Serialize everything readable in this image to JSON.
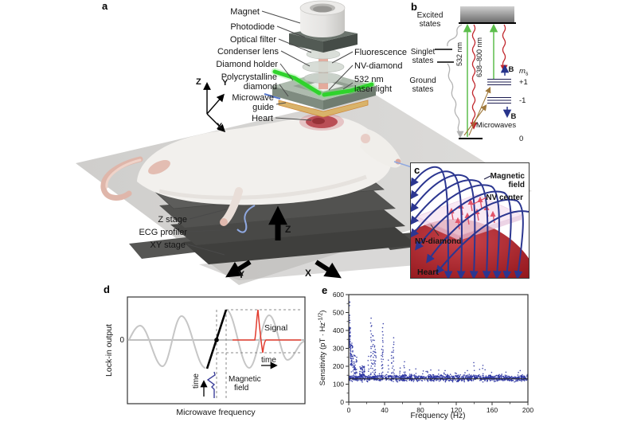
{
  "figure_bg": "#ffffff",
  "panel_a": {
    "label": "a",
    "labels": {
      "magnet": "Magnet",
      "photodiode": "Photodiode",
      "optical_filter": "Optical filter",
      "condenser_lens": "Condenser lens",
      "diamond_holder": "Diamond holder",
      "polycrystalline_1": "Polycrystalline",
      "polycrystalline_2": "diamond",
      "microwave_guide_1": "Microwave",
      "microwave_guide_2": "guide",
      "heart": "Heart",
      "fluorescence": "Fluorescence",
      "nv_diamond": "NV-diamond",
      "laser_1": "532 nm",
      "laser_2": "laser light",
      "z_stage": "Z stage",
      "ecg_profiler": "ECG profiler",
      "xy_stage": "XY stage"
    },
    "triad": {
      "z": "Z",
      "y": "Y",
      "x": "X"
    },
    "stage_arrows": {
      "z": "Z",
      "y": "Y",
      "x": "X"
    },
    "colors": {
      "laser_green": "#2fd32c",
      "fluorescence": "#e2a394",
      "heart_spot": "#b23a42"
    }
  },
  "panel_b": {
    "label": "b",
    "excited_1": "Excited",
    "excited_2": "states",
    "singlet_1": "Singlet",
    "singlet_2": "states",
    "ground_1": "Ground",
    "ground_2": "states",
    "pump_label": "532 nm",
    "emission_label": "638–800 nm",
    "microwaves_label": "Microwaves",
    "ms_main": "m",
    "ms_sub": "s",
    "level_plus": "+1",
    "level_minus": "-1",
    "level_zero": "0",
    "b_up": "B",
    "b_down": "B",
    "colors": {
      "pump": "#5cbe4b",
      "emission": "#c1272d",
      "microwaves": "#a0793c",
      "zeeman": "#27348b"
    }
  },
  "panel_c": {
    "label": "c",
    "magnetic_field_1": "Magnetic",
    "magnetic_field_2": "field",
    "nv_center": "NV center",
    "nv_diamond": "NV-diamond",
    "heart": "Heart",
    "colors": {
      "field_lines": "#2b3690",
      "nv_center": "#e04858",
      "heart": "#a81d22"
    }
  },
  "panel_d": {
    "label": "d",
    "ylabel": "Lock-in output",
    "zero": "0",
    "xlabel": "Microwave frequency",
    "signal": "Signal",
    "time_signal": "time",
    "magnetic_field_1": "Magnetic",
    "magnetic_field_2": "field",
    "time_field": "time",
    "colors": {
      "carrier": "#c6c6c6",
      "slope": "#000000",
      "signal": "#e23b2e",
      "field": "#3c3f99"
    }
  },
  "panel_e": {
    "label": "e"
  },
  "chart_data": {
    "type": "scatter",
    "panel": "e",
    "xlabel": "Frequency (Hz)",
    "ylabel_main": "Sensitivity (pT · Hz",
    "ylabel_sup": "-1/2",
    "ylabel_end": ")",
    "xlim": [
      0,
      200
    ],
    "ylim": [
      0,
      600
    ],
    "xticks": [
      0,
      40,
      80,
      120,
      160,
      200
    ],
    "yticks": [
      0,
      100,
      200,
      300,
      400,
      500,
      600
    ],
    "x_minor_step": 20,
    "y_minor_step": 50,
    "grid": false,
    "marker_color": "#2c35a2",
    "noise_floor_line": 130,
    "baseline": {
      "mean": 134,
      "sd": 9,
      "n_points": 1150
    },
    "clusters": [
      {
        "f0": 0.2,
        "f1": 1.8,
        "vmin": 300,
        "vmax": 420,
        "n": 50
      },
      {
        "f0": 0.4,
        "f1": 1.2,
        "vmin": 420,
        "vmax": 570,
        "n": 10
      },
      {
        "f0": 1.8,
        "f1": 4.5,
        "vmin": 200,
        "vmax": 340,
        "n": 45
      },
      {
        "f0": 4.5,
        "f1": 9.0,
        "vmin": 150,
        "vmax": 265,
        "n": 40
      },
      {
        "f0": 12.0,
        "f1": 18.0,
        "vmin": 140,
        "vmax": 200,
        "n": 45
      }
    ],
    "peaks": [
      {
        "f": 15,
        "v": 205
      },
      {
        "f": 22,
        "v": 250
      },
      {
        "f": 25,
        "v": 465
      },
      {
        "f": 27,
        "v": 380
      },
      {
        "f": 29,
        "v": 340
      },
      {
        "f": 30,
        "v": 300
      },
      {
        "f": 37,
        "v": 290
      },
      {
        "f": 38,
        "v": 430
      },
      {
        "f": 44,
        "v": 230
      },
      {
        "f": 48,
        "v": 285
      },
      {
        "f": 50,
        "v": 360
      },
      {
        "f": 57,
        "v": 195
      },
      {
        "f": 62,
        "v": 225
      },
      {
        "f": 68,
        "v": 180
      },
      {
        "f": 75,
        "v": 180
      },
      {
        "f": 83,
        "v": 175
      },
      {
        "f": 92,
        "v": 180
      },
      {
        "f": 100,
        "v": 170
      },
      {
        "f": 107,
        "v": 175
      },
      {
        "f": 120,
        "v": 165
      },
      {
        "f": 133,
        "v": 170
      },
      {
        "f": 140,
        "v": 215
      },
      {
        "f": 146,
        "v": 175
      },
      {
        "f": 150,
        "v": 205
      },
      {
        "f": 160,
        "v": 165
      },
      {
        "f": 175,
        "v": 160
      },
      {
        "f": 190,
        "v": 160
      }
    ]
  }
}
